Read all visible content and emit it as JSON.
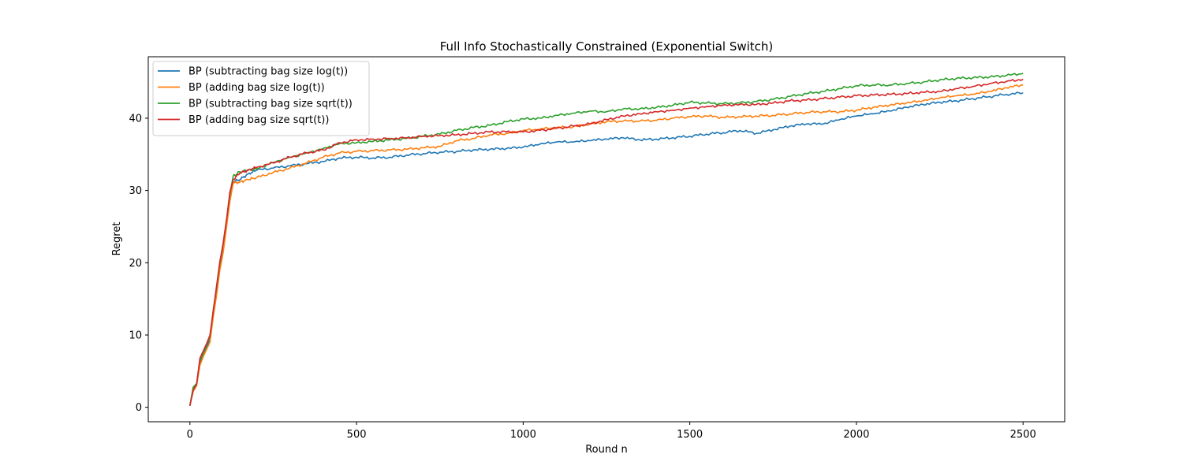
{
  "chart_data": {
    "type": "line",
    "title": "Full Info Stochastically Constrained (Exponential Switch)",
    "xlabel": "Round n",
    "ylabel": "Regret",
    "xlim": [
      -125,
      2625
    ],
    "ylim": [
      -2,
      48.5
    ],
    "xticks": [
      0,
      500,
      1000,
      1500,
      2000,
      2500
    ],
    "yticks": [
      0,
      10,
      20,
      30,
      40
    ],
    "grid": false,
    "legend_position": "top-left",
    "series": [
      {
        "name": "BP (subtracting bag size log(t))",
        "color": "#1f77b4",
        "points": [
          [
            0,
            0.2
          ],
          [
            10,
            2.5
          ],
          [
            20,
            3.2
          ],
          [
            30,
            6.2
          ],
          [
            40,
            7.2
          ],
          [
            50,
            8.2
          ],
          [
            60,
            9.5
          ],
          [
            70,
            13
          ],
          [
            80,
            16
          ],
          [
            90,
            19.5
          ],
          [
            100,
            22.5
          ],
          [
            110,
            25.5
          ],
          [
            120,
            29
          ],
          [
            130,
            31.2
          ],
          [
            150,
            31.5
          ],
          [
            175,
            32.3
          ],
          [
            200,
            32.8
          ],
          [
            250,
            33.1
          ],
          [
            300,
            33.4
          ],
          [
            350,
            33.7
          ],
          [
            400,
            34.0
          ],
          [
            450,
            34.5
          ],
          [
            500,
            34.6
          ],
          [
            550,
            34.5
          ],
          [
            600,
            34.6
          ],
          [
            650,
            34.9
          ],
          [
            700,
            35.1
          ],
          [
            750,
            35.3
          ],
          [
            800,
            35.4
          ],
          [
            850,
            35.6
          ],
          [
            900,
            35.7
          ],
          [
            950,
            35.8
          ],
          [
            1000,
            36.0
          ],
          [
            1050,
            36.4
          ],
          [
            1100,
            36.7
          ],
          [
            1150,
            36.7
          ],
          [
            1200,
            36.9
          ],
          [
            1250,
            37.1
          ],
          [
            1300,
            37.3
          ],
          [
            1350,
            37.0
          ],
          [
            1400,
            37.1
          ],
          [
            1450,
            37.3
          ],
          [
            1500,
            37.5
          ],
          [
            1550,
            37.8
          ],
          [
            1600,
            38.0
          ],
          [
            1650,
            38.3
          ],
          [
            1700,
            37.9
          ],
          [
            1750,
            38.4
          ],
          [
            1800,
            38.9
          ],
          [
            1850,
            39.2
          ],
          [
            1900,
            39.2
          ],
          [
            1950,
            39.8
          ],
          [
            2000,
            40.3
          ],
          [
            2050,
            40.6
          ],
          [
            2100,
            41.0
          ],
          [
            2150,
            41.5
          ],
          [
            2200,
            41.9
          ],
          [
            2250,
            42.2
          ],
          [
            2300,
            42.4
          ],
          [
            2350,
            42.7
          ],
          [
            2400,
            43.0
          ],
          [
            2450,
            43.3
          ],
          [
            2500,
            43.5
          ]
        ]
      },
      {
        "name": "BP (adding bag size log(t))",
        "color": "#ff7f0e",
        "points": [
          [
            0,
            0.3
          ],
          [
            10,
            2.2
          ],
          [
            20,
            3.0
          ],
          [
            30,
            5.8
          ],
          [
            40,
            7.0
          ],
          [
            50,
            8.0
          ],
          [
            60,
            9.0
          ],
          [
            70,
            12.5
          ],
          [
            80,
            15.5
          ],
          [
            90,
            19.0
          ],
          [
            100,
            21.5
          ],
          [
            110,
            25.0
          ],
          [
            120,
            28.5
          ],
          [
            130,
            31.0
          ],
          [
            150,
            31.2
          ],
          [
            175,
            31.5
          ],
          [
            200,
            31.8
          ],
          [
            250,
            32.5
          ],
          [
            300,
            33.1
          ],
          [
            350,
            33.8
          ],
          [
            400,
            34.6
          ],
          [
            450,
            35.2
          ],
          [
            500,
            35.4
          ],
          [
            550,
            35.5
          ],
          [
            600,
            35.6
          ],
          [
            650,
            35.7
          ],
          [
            700,
            35.9
          ],
          [
            750,
            36.1
          ],
          [
            800,
            36.9
          ],
          [
            850,
            37.2
          ],
          [
            900,
            37.7
          ],
          [
            950,
            37.9
          ],
          [
            1000,
            38.3
          ],
          [
            1050,
            38.5
          ],
          [
            1100,
            38.7
          ],
          [
            1150,
            38.8
          ],
          [
            1200,
            39.2
          ],
          [
            1250,
            39.5
          ],
          [
            1300,
            39.6
          ],
          [
            1350,
            39.6
          ],
          [
            1400,
            39.7
          ],
          [
            1450,
            40.0
          ],
          [
            1500,
            40.2
          ],
          [
            1550,
            40.3
          ],
          [
            1600,
            40.1
          ],
          [
            1650,
            40.2
          ],
          [
            1700,
            40.3
          ],
          [
            1750,
            40.4
          ],
          [
            1800,
            40.6
          ],
          [
            1850,
            40.8
          ],
          [
            1900,
            40.9
          ],
          [
            1950,
            40.9
          ],
          [
            2000,
            41.1
          ],
          [
            2050,
            41.5
          ],
          [
            2100,
            41.8
          ],
          [
            2150,
            42.1
          ],
          [
            2200,
            42.4
          ],
          [
            2250,
            42.8
          ],
          [
            2300,
            43.1
          ],
          [
            2350,
            43.3
          ],
          [
            2400,
            43.7
          ],
          [
            2450,
            44.2
          ],
          [
            2500,
            44.6
          ]
        ]
      },
      {
        "name": "BP (subtracting bag size sqrt(t))",
        "color": "#2ca02c",
        "points": [
          [
            0,
            0.3
          ],
          [
            10,
            2.8
          ],
          [
            20,
            3.3
          ],
          [
            30,
            6.5
          ],
          [
            40,
            7.5
          ],
          [
            50,
            8.6
          ],
          [
            60,
            9.8
          ],
          [
            70,
            13.5
          ],
          [
            80,
            16.5
          ],
          [
            90,
            20.0
          ],
          [
            100,
            22.8
          ],
          [
            110,
            26.0
          ],
          [
            120,
            29.5
          ],
          [
            130,
            32.0
          ],
          [
            150,
            32.6
          ],
          [
            175,
            32.8
          ],
          [
            200,
            33.0
          ],
          [
            250,
            33.9
          ],
          [
            300,
            34.6
          ],
          [
            350,
            35.2
          ],
          [
            400,
            35.8
          ],
          [
            450,
            36.5
          ],
          [
            500,
            36.6
          ],
          [
            550,
            36.8
          ],
          [
            600,
            37.0
          ],
          [
            650,
            37.2
          ],
          [
            700,
            37.5
          ],
          [
            750,
            37.8
          ],
          [
            800,
            38.3
          ],
          [
            850,
            38.7
          ],
          [
            900,
            39.0
          ],
          [
            950,
            39.5
          ],
          [
            1000,
            39.9
          ],
          [
            1050,
            40.0
          ],
          [
            1100,
            40.4
          ],
          [
            1150,
            40.7
          ],
          [
            1200,
            41.0
          ],
          [
            1250,
            40.9
          ],
          [
            1300,
            41.3
          ],
          [
            1350,
            41.3
          ],
          [
            1400,
            41.5
          ],
          [
            1450,
            41.8
          ],
          [
            1500,
            42.2
          ],
          [
            1550,
            42.1
          ],
          [
            1600,
            42.0
          ],
          [
            1650,
            42.1
          ],
          [
            1700,
            42.3
          ],
          [
            1750,
            42.6
          ],
          [
            1800,
            43.0
          ],
          [
            1850,
            43.4
          ],
          [
            1900,
            43.7
          ],
          [
            1950,
            44.1
          ],
          [
            2000,
            44.5
          ],
          [
            2050,
            44.6
          ],
          [
            2100,
            44.6
          ],
          [
            2150,
            44.8
          ],
          [
            2200,
            45.0
          ],
          [
            2250,
            45.3
          ],
          [
            2300,
            45.5
          ],
          [
            2350,
            45.6
          ],
          [
            2400,
            45.7
          ],
          [
            2450,
            45.9
          ],
          [
            2500,
            46.2
          ]
        ]
      },
      {
        "name": "BP (adding bag size sqrt(t))",
        "color": "#d62728",
        "points": [
          [
            0,
            0.2
          ],
          [
            10,
            2.4
          ],
          [
            20,
            3.2
          ],
          [
            30,
            6.8
          ],
          [
            40,
            7.8
          ],
          [
            50,
            8.8
          ],
          [
            60,
            10.0
          ],
          [
            70,
            13.3
          ],
          [
            80,
            16.8
          ],
          [
            90,
            20.2
          ],
          [
            100,
            22.8
          ],
          [
            110,
            26.0
          ],
          [
            120,
            29.8
          ],
          [
            130,
            31.5
          ],
          [
            150,
            32.4
          ],
          [
            175,
            32.8
          ],
          [
            200,
            33.2
          ],
          [
            250,
            33.8
          ],
          [
            300,
            34.6
          ],
          [
            350,
            35.2
          ],
          [
            400,
            35.6
          ],
          [
            450,
            36.6
          ],
          [
            500,
            37.0
          ],
          [
            550,
            37.1
          ],
          [
            600,
            37.2
          ],
          [
            650,
            37.3
          ],
          [
            700,
            37.5
          ],
          [
            750,
            37.6
          ],
          [
            800,
            37.7
          ],
          [
            850,
            37.9
          ],
          [
            900,
            38.1
          ],
          [
            950,
            38.1
          ],
          [
            1000,
            38.1
          ],
          [
            1050,
            38.3
          ],
          [
            1100,
            38.6
          ],
          [
            1150,
            38.9
          ],
          [
            1200,
            39.2
          ],
          [
            1250,
            39.8
          ],
          [
            1300,
            40.3
          ],
          [
            1350,
            40.6
          ],
          [
            1400,
            40.9
          ],
          [
            1450,
            41.1
          ],
          [
            1500,
            41.4
          ],
          [
            1550,
            41.6
          ],
          [
            1600,
            41.8
          ],
          [
            1650,
            41.9
          ],
          [
            1700,
            41.9
          ],
          [
            1750,
            42.1
          ],
          [
            1800,
            42.4
          ],
          [
            1850,
            42.5
          ],
          [
            1900,
            42.7
          ],
          [
            1950,
            42.9
          ],
          [
            2000,
            43.1
          ],
          [
            2050,
            43.2
          ],
          [
            2100,
            43.3
          ],
          [
            2150,
            43.4
          ],
          [
            2200,
            43.6
          ],
          [
            2250,
            43.7
          ],
          [
            2300,
            44.1
          ],
          [
            2350,
            44.4
          ],
          [
            2400,
            44.8
          ],
          [
            2450,
            45.1
          ],
          [
            2500,
            45.4
          ]
        ]
      }
    ]
  }
}
